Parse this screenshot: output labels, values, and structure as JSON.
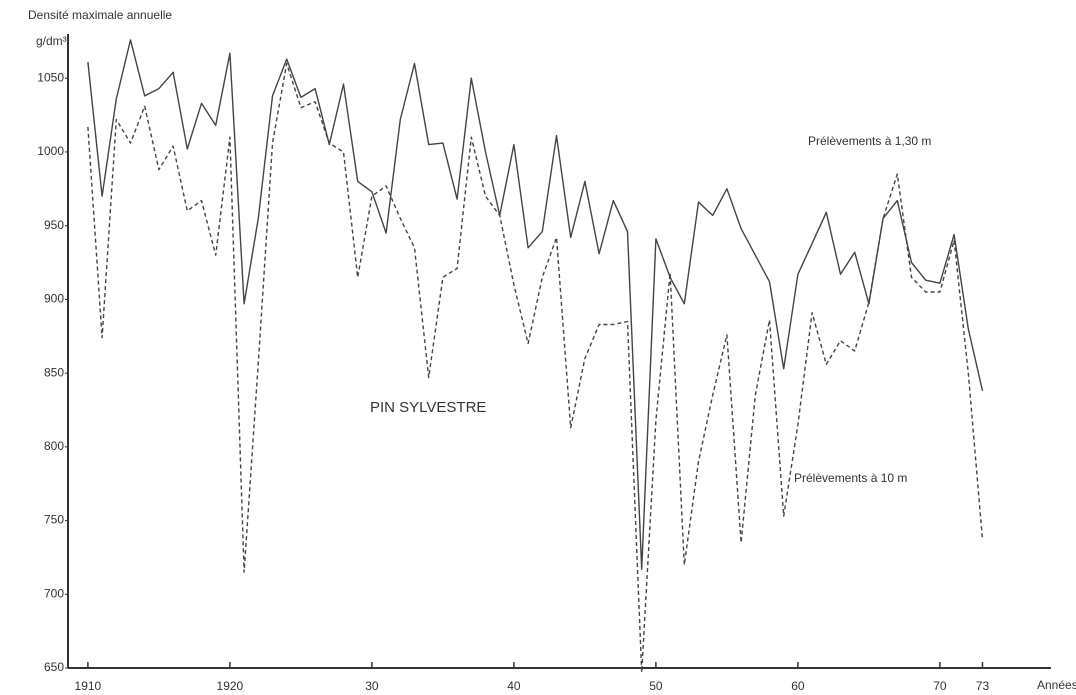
{
  "chart_data": {
    "type": "line",
    "y_label": "Densité maximale annuelle",
    "y_unit": "g/dm³",
    "x_label": "Années",
    "annotation": "PIN SYLVESTRE",
    "x": [
      1910,
      1911,
      1912,
      1913,
      1914,
      1915,
      1916,
      1917,
      1918,
      1919,
      1920,
      1921,
      1922,
      1923,
      1924,
      1925,
      1926,
      1927,
      1928,
      1929,
      1930,
      1931,
      1932,
      1933,
      1934,
      1935,
      1936,
      1937,
      1938,
      1939,
      1940,
      1941,
      1942,
      1943,
      1944,
      1945,
      1946,
      1947,
      1948,
      1949,
      1950,
      1951,
      1952,
      1953,
      1954,
      1955,
      1956,
      1957,
      1958,
      1959,
      1960,
      1961,
      1962,
      1963,
      1964,
      1965,
      1966,
      1967,
      1968,
      1969,
      1970,
      1971,
      1972,
      1973
    ],
    "series": [
      {
        "name": "Prélèvements à 1,30 m",
        "color": "#444444",
        "dash": false,
        "values": [
          1061,
          970,
          1036,
          1076,
          1038,
          1043,
          1054,
          1002,
          1033,
          1018,
          1067,
          897,
          955,
          1038,
          1063,
          1037,
          1043,
          1005,
          1046,
          980,
          973,
          945,
          1022,
          1060,
          1005,
          1006,
          968,
          1050,
          1000,
          957,
          1005,
          935,
          946,
          1011,
          942,
          980,
          931,
          967,
          946,
          717,
          941,
          915,
          897,
          966,
          957,
          975,
          948,
          930,
          912,
          853,
          917,
          938,
          959,
          917,
          932,
          897,
          955,
          967,
          925,
          913,
          911,
          944,
          880,
          838
        ]
      },
      {
        "name": "Prélèvements à 10 m",
        "color": "#444444",
        "dash": true,
        "values": [
          1017,
          874,
          1022,
          1006,
          1031,
          988,
          1004,
          960,
          967,
          930,
          1010,
          715,
          857,
          1006,
          1060,
          1030,
          1034,
          1006,
          1000,
          915,
          970,
          977,
          955,
          935,
          847,
          915,
          921,
          1010,
          970,
          957,
          910,
          870,
          915,
          942,
          813,
          860,
          883,
          883,
          885,
          647,
          818,
          918,
          720,
          790,
          835,
          876,
          735,
          835,
          886,
          753,
          815,
          891,
          856,
          872,
          865,
          898,
          955,
          985,
          915,
          905,
          905,
          940,
          850,
          737
        ]
      }
    ],
    "xlim": [
      1908.6,
      1975
    ],
    "ylim": [
      650,
      1080
    ],
    "xticks": [
      {
        "value": 1910,
        "label": "1910"
      },
      {
        "value": 1920,
        "label": "1920"
      },
      {
        "value": 1930,
        "label": "30"
      },
      {
        "value": 1940,
        "label": "40"
      },
      {
        "value": 1950,
        "label": "50"
      },
      {
        "value": 1960,
        "label": "60"
      },
      {
        "value": 1970,
        "label": "70"
      },
      {
        "value": 1973,
        "label": "73"
      }
    ],
    "yticks": [
      650,
      700,
      750,
      800,
      850,
      900,
      950,
      1000,
      1050
    ],
    "grid": false
  }
}
